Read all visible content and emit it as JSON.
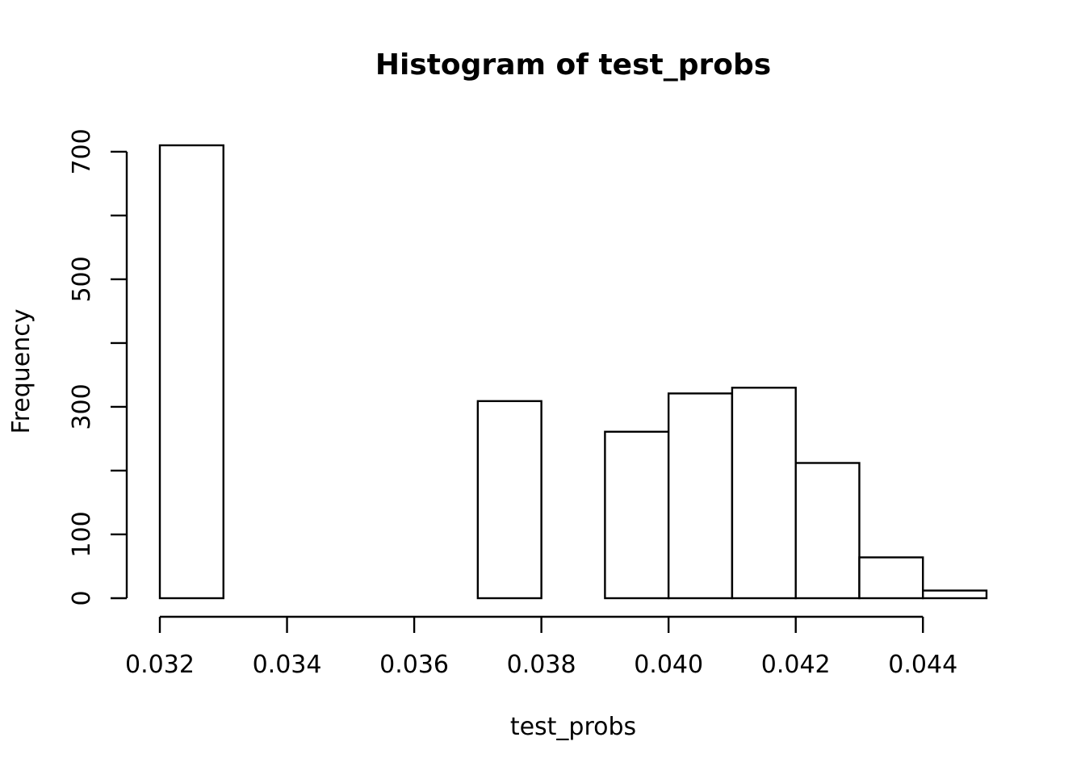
{
  "chart_data": {
    "type": "bar",
    "title": "Histogram of test_probs",
    "xlabel": "test_probs",
    "ylabel": "Frequency",
    "bin_width": 0.001,
    "bins": [
      {
        "x0": 0.032,
        "x1": 0.033,
        "count": 710
      },
      {
        "x0": 0.033,
        "x1": 0.034,
        "count": 0
      },
      {
        "x0": 0.034,
        "x1": 0.035,
        "count": 0
      },
      {
        "x0": 0.035,
        "x1": 0.036,
        "count": 0
      },
      {
        "x0": 0.036,
        "x1": 0.037,
        "count": 0
      },
      {
        "x0": 0.037,
        "x1": 0.038,
        "count": 309
      },
      {
        "x0": 0.038,
        "x1": 0.039,
        "count": 0
      },
      {
        "x0": 0.039,
        "x1": 0.04,
        "count": 261
      },
      {
        "x0": 0.04,
        "x1": 0.041,
        "count": 321
      },
      {
        "x0": 0.041,
        "x1": 0.042,
        "count": 330
      },
      {
        "x0": 0.042,
        "x1": 0.043,
        "count": 212
      },
      {
        "x0": 0.043,
        "x1": 0.044,
        "count": 64
      },
      {
        "x0": 0.044,
        "x1": 0.045,
        "count": 12
      }
    ],
    "xlim": [
      0.032,
      0.045
    ],
    "ylim": [
      0,
      710
    ],
    "x_ticks": [
      0.032,
      0.034,
      0.036,
      0.038,
      0.04,
      0.042,
      0.044
    ],
    "x_tick_labels": [
      "0.032",
      "0.034",
      "0.036",
      "0.038",
      "0.040",
      "0.042",
      "0.044"
    ],
    "y_ticks": [
      0,
      100,
      200,
      300,
      400,
      500,
      600,
      700
    ],
    "y_tick_labels": [
      "0",
      "100",
      "",
      "300",
      "",
      "500",
      "",
      "700"
    ],
    "grid": false,
    "legend": "none"
  }
}
